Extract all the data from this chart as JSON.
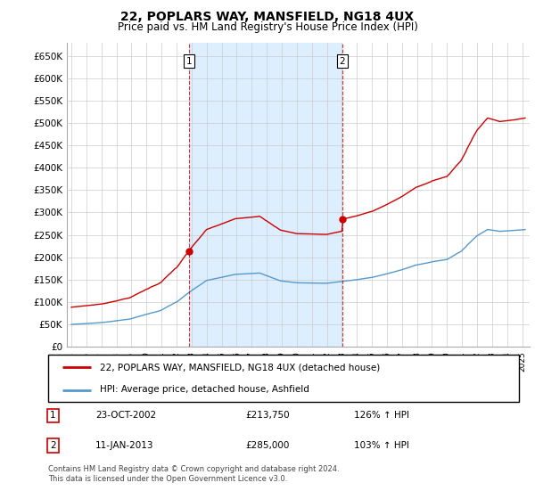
{
  "title": "22, POPLARS WAY, MANSFIELD, NG18 4UX",
  "subtitle": "Price paid vs. HM Land Registry's House Price Index (HPI)",
  "legend_line1": "22, POPLARS WAY, MANSFIELD, NG18 4UX (detached house)",
  "legend_line2": "HPI: Average price, detached house, Ashfield",
  "sale1_date": "23-OCT-2002",
  "sale1_price": 213750,
  "sale1_label": "126% ↑ HPI",
  "sale2_date": "11-JAN-2013",
  "sale2_price": 285000,
  "sale2_label": "103% ↑ HPI",
  "footnote1": "Contains HM Land Registry data © Crown copyright and database right 2024.",
  "footnote2": "This data is licensed under the Open Government Licence v3.0.",
  "red_color": "#cc0000",
  "blue_color": "#5599cc",
  "shade_color": "#ddeeff",
  "grid_color": "#cccccc",
  "sale1_x": 2002.81,
  "sale2_x": 2013.03,
  "ylim": [
    0,
    680000
  ],
  "yticks": [
    0,
    50000,
    100000,
    150000,
    200000,
    250000,
    300000,
    350000,
    400000,
    450000,
    500000,
    550000,
    600000,
    650000
  ],
  "ytick_labels": [
    "£0",
    "£50K",
    "£100K",
    "£150K",
    "£200K",
    "£250K",
    "£300K",
    "£350K",
    "£400K",
    "£450K",
    "£500K",
    "£550K",
    "£600K",
    "£650K"
  ],
  "xmin": 1994.7,
  "xmax": 2025.5
}
